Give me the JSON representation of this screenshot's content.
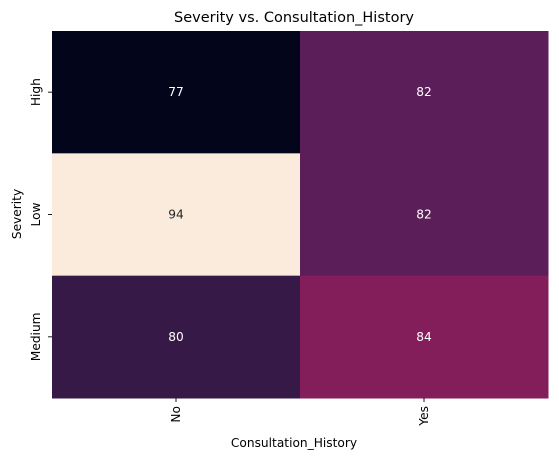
{
  "chart_data": {
    "type": "heatmap",
    "title": "Severity vs. Consultation_History",
    "xlabel": "Consultation_History",
    "ylabel": "Severity",
    "x_categories": [
      "No",
      "Yes"
    ],
    "y_categories": [
      "High",
      "Low",
      "Medium"
    ],
    "values": [
      [
        77,
        82
      ],
      [
        94,
        82
      ],
      [
        80,
        84
      ]
    ],
    "color_range": [
      77,
      94
    ],
    "colormap": "rocket",
    "annotations": true,
    "colorbar": false,
    "colors": {
      "low": "#03051a",
      "high": "#faebdd",
      "text_on_dark": "#ffffff",
      "text_on_light": "#262626"
    }
  }
}
